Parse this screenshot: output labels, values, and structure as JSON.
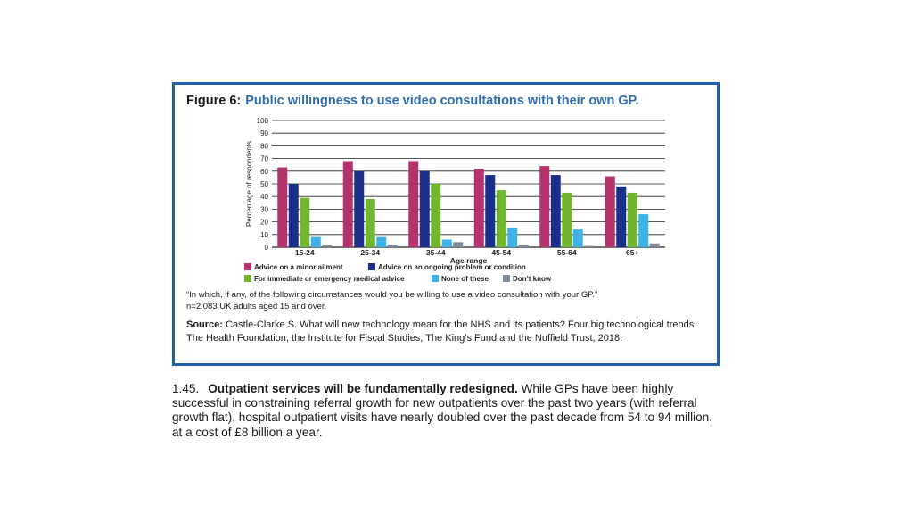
{
  "figure": {
    "number": "Figure 6:",
    "title": "Public willingness to use video consultations with their own GP.",
    "question": "“In which, if any, of the following circumstances would you be willing to use a video consultation with your GP.”",
    "sample": "n=2,083 UK adults aged 15 and over.",
    "source_label": "Source:",
    "source_text": "Castle-Clarke S. What will new technology mean for the NHS and its patients? Four big technological trends. The Health Foundation, the Institute for Fiscal Studies, The King’s Fund and the Nuffield Trust, 2018."
  },
  "chart_data": {
    "type": "bar",
    "xlabel": "Age range",
    "ylabel": "Percentage of respondents",
    "ylim": [
      0,
      100
    ],
    "yticks": [
      0,
      10,
      20,
      30,
      40,
      50,
      60,
      70,
      80,
      90,
      100
    ],
    "grid": true,
    "legend_position": "bottom",
    "categories": [
      "15-24",
      "25-34",
      "35-44",
      "45-54",
      "55-64",
      "65+"
    ],
    "series": [
      {
        "name": "Advice on a minor ailment",
        "color": "#b5326e",
        "values": [
          63,
          68,
          68,
          62,
          64,
          56
        ]
      },
      {
        "name": "Advice on an ongoing problem or condition",
        "color": "#1a2f8c",
        "values": [
          50,
          60,
          60,
          57,
          57,
          48
        ]
      },
      {
        "name": "For immediate or emergency medical advice",
        "color": "#70b62e",
        "values": [
          39,
          38,
          50,
          45,
          43,
          43
        ]
      },
      {
        "name": "None of these",
        "color": "#3db3e5",
        "values": [
          8,
          8,
          6,
          15,
          14,
          26
        ]
      },
      {
        "name": "Don’t know",
        "color": "#7f8b96",
        "values": [
          2,
          2,
          4,
          2,
          1,
          3
        ]
      }
    ]
  },
  "paragraph": {
    "number": "1.45.",
    "heading": "Outpatient services will be fundamentally redesigned.",
    "text": " While GPs have been highly successful in constraining referral growth for new outpatients over the past two years (with referral growth flat), hospital outpatient visits have nearly doubled over the past decade from 54 to 94 million, at a cost of £8 billion a year."
  }
}
